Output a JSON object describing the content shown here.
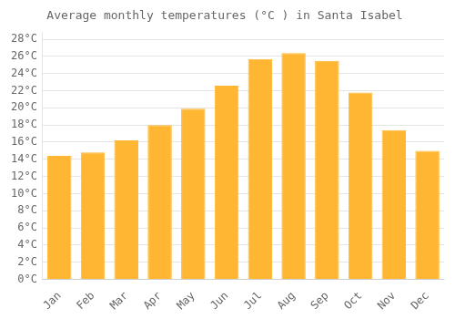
{
  "chart_data": {
    "type": "bar",
    "title": "Average monthly temperatures (°C ) in Santa Isabel",
    "categories": [
      "Jan",
      "Feb",
      "Mar",
      "Apr",
      "May",
      "Jun",
      "Jul",
      "Aug",
      "Sep",
      "Oct",
      "Nov",
      "Dec"
    ],
    "values": [
      14.4,
      14.8,
      16.2,
      18.0,
      19.9,
      22.6,
      25.7,
      26.4,
      25.5,
      21.8,
      17.4,
      15.0
    ],
    "color": "#FFB733",
    "ylim": [
      0,
      28.8
    ],
    "yticks": [
      {
        "value": 0,
        "label": "0°C"
      },
      {
        "value": 2,
        "label": "2°C"
      },
      {
        "value": 4,
        "label": "4°C"
      },
      {
        "value": 6,
        "label": "6°C"
      },
      {
        "value": 8,
        "label": "8°C"
      },
      {
        "value": 10,
        "label": "10°C"
      },
      {
        "value": 12,
        "label": "12°C"
      },
      {
        "value": 14,
        "label": "14°C"
      },
      {
        "value": 16,
        "label": "16°C"
      },
      {
        "value": 18,
        "label": "18°C"
      },
      {
        "value": 20,
        "label": "20°C"
      },
      {
        "value": 22,
        "label": "22°C"
      },
      {
        "value": 24,
        "label": "24°C"
      },
      {
        "value": 26,
        "label": "26°C"
      },
      {
        "value": 28,
        "label": "28°C"
      }
    ],
    "grid": true
  }
}
